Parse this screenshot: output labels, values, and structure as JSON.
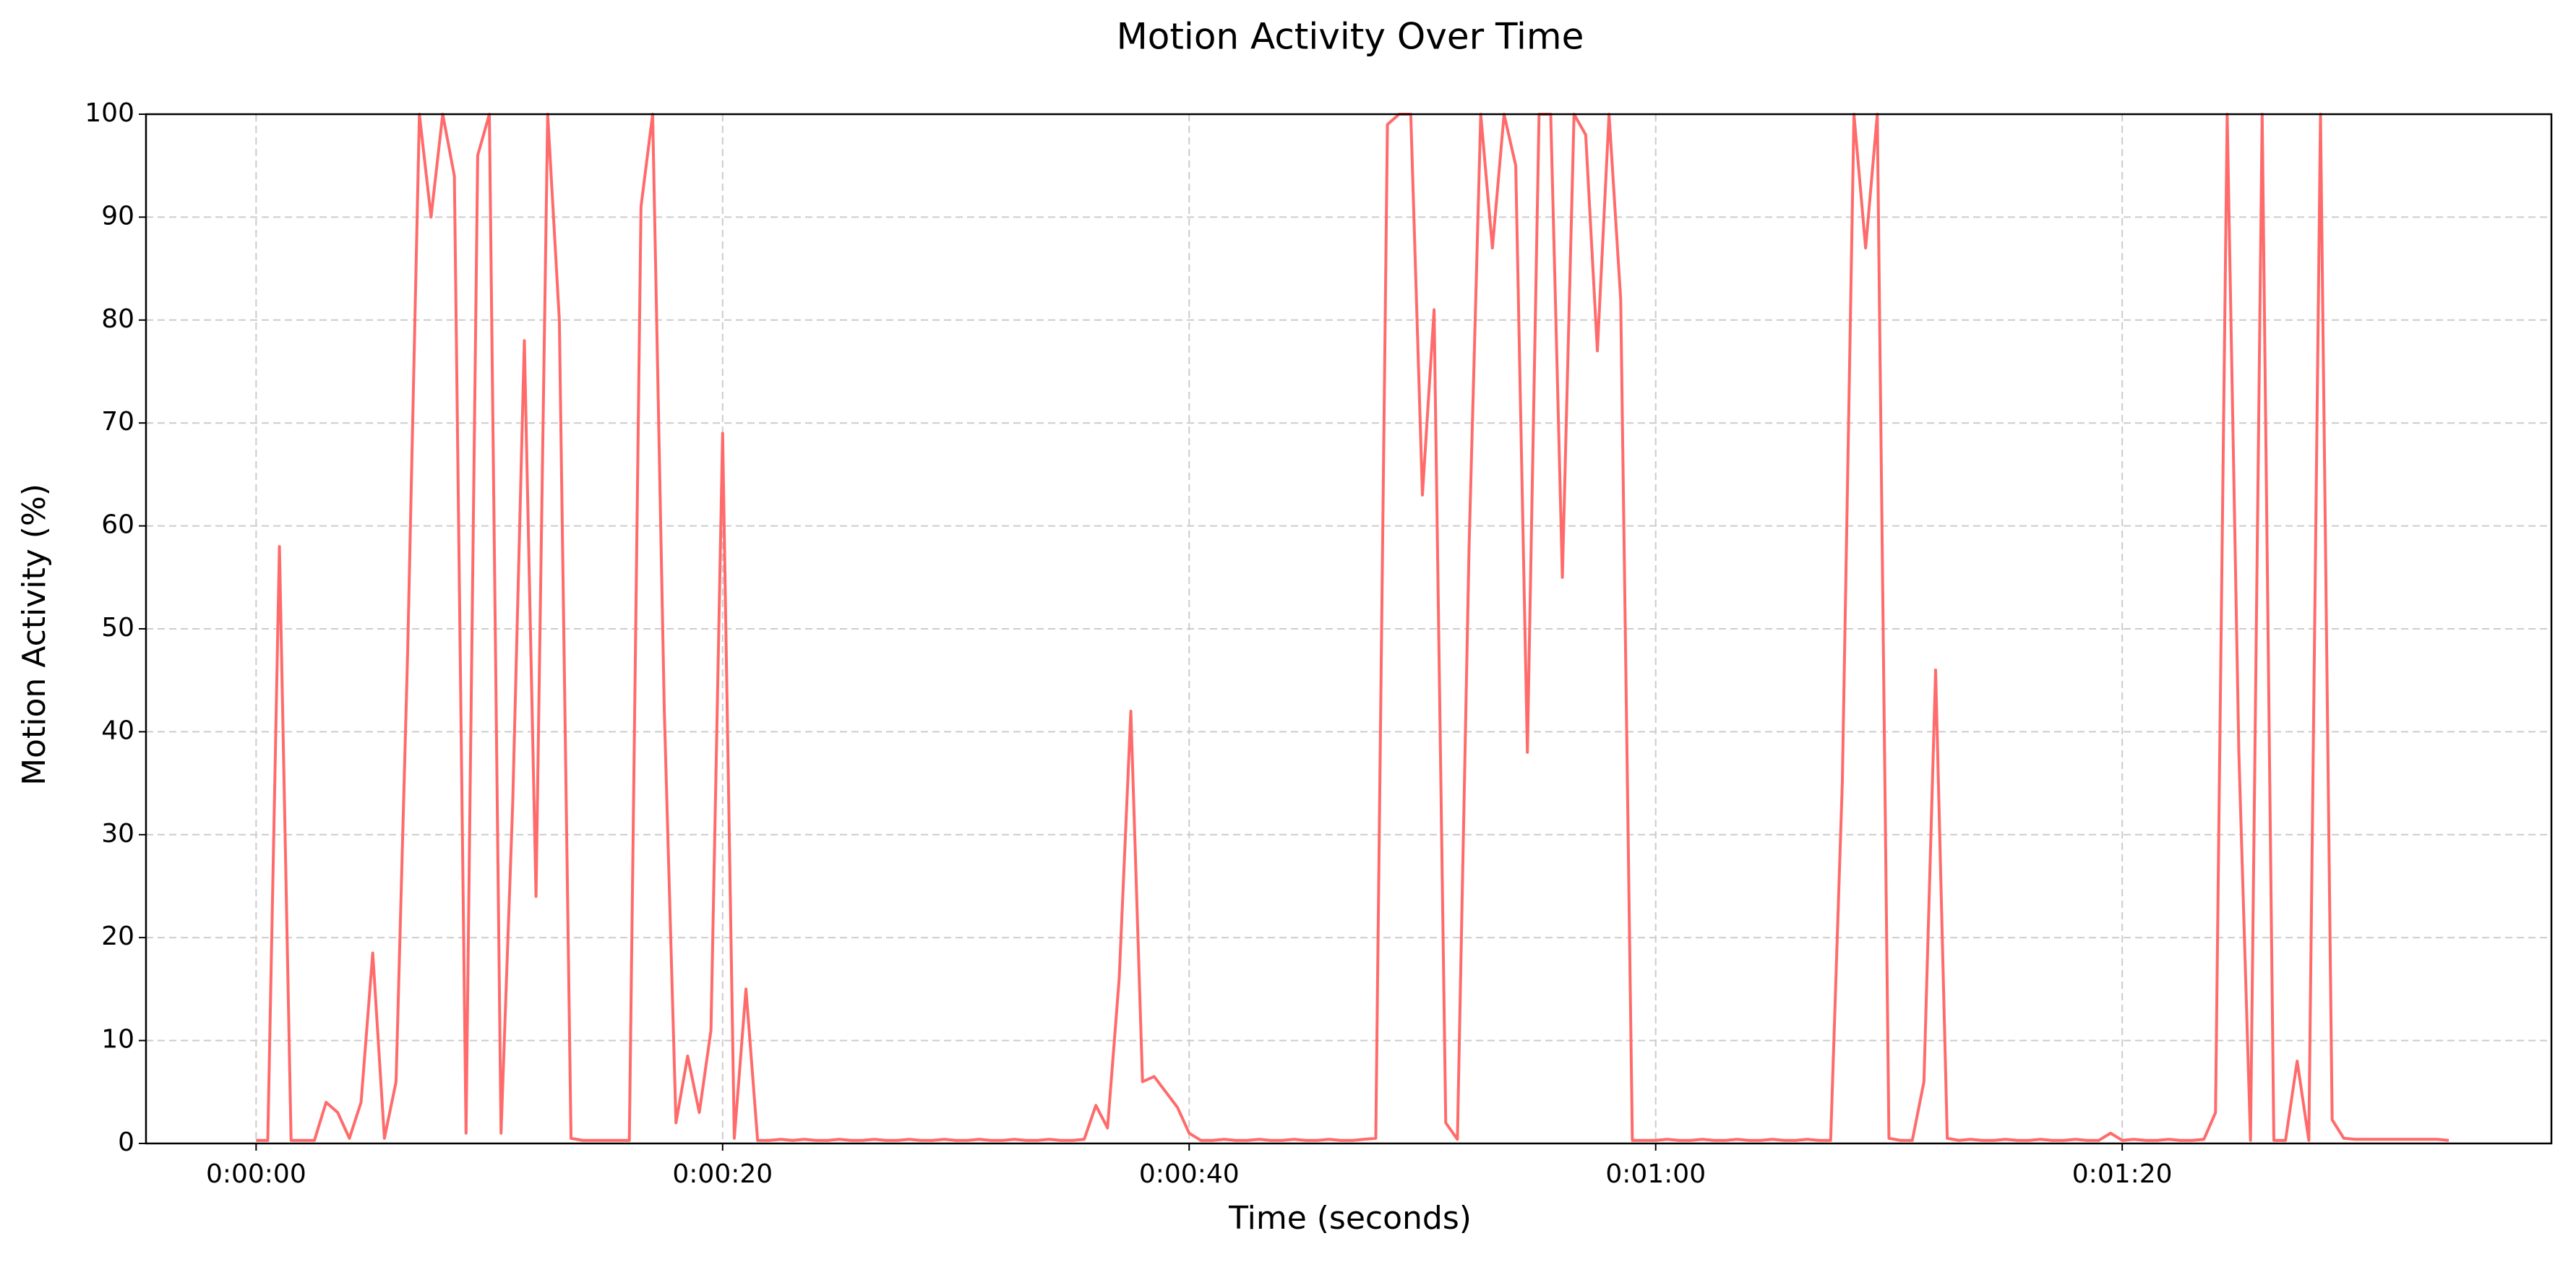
{
  "chart_data": {
    "type": "line",
    "title": "Motion Activity Over Time",
    "x_label": "Time (seconds)",
    "y_label": "Motion Activity (%)",
    "color": "#ff6b6b",
    "grid": true,
    "xlim": [
      -4.72,
      98.4
    ],
    "ylim": [
      0,
      100
    ],
    "xticks": [
      {
        "value": 0,
        "label": "0:00:00"
      },
      {
        "value": 20,
        "label": "0:00:20"
      },
      {
        "value": 40,
        "label": "0:00:40"
      },
      {
        "value": 60,
        "label": "0:01:00"
      },
      {
        "value": 80,
        "label": "0:01:20"
      }
    ],
    "yticks": [
      0,
      10,
      20,
      30,
      40,
      50,
      60,
      70,
      80,
      90,
      100
    ],
    "x": [
      0,
      0.5,
      1,
      1.5,
      2,
      2.5,
      3,
      3.5,
      4,
      4.5,
      5,
      5.5,
      6,
      6.5,
      7,
      7.5,
      8,
      8.5,
      9,
      9.5,
      10,
      10.5,
      11,
      11.5,
      12,
      12.5,
      13,
      13.5,
      14,
      14.5,
      15,
      15.5,
      16,
      16.5,
      17,
      17.5,
      18,
      18.5,
      19,
      19.5,
      20,
      20.5,
      21,
      21.5,
      22,
      22.5,
      23,
      23.5,
      24,
      24.5,
      25,
      25.5,
      26,
      26.5,
      27,
      27.5,
      28,
      28.5,
      29,
      29.5,
      30,
      30.5,
      31,
      31.5,
      32,
      32.5,
      33,
      33.5,
      34,
      34.5,
      35,
      35.5,
      36,
      36.5,
      37,
      37.5,
      38,
      38.5,
      39,
      39.5,
      40,
      40.5,
      41,
      41.5,
      42,
      42.5,
      43,
      43.5,
      44,
      44.5,
      45,
      45.5,
      46,
      46.5,
      47,
      47.5,
      48,
      48.5,
      49,
      49.5,
      50,
      50.5,
      51,
      51.5,
      52,
      52.5,
      53,
      53.5,
      54,
      54.5,
      55,
      55.5,
      56,
      56.5,
      57,
      57.5,
      58,
      58.5,
      59,
      59.5,
      60,
      60.5,
      61,
      61.5,
      62,
      62.5,
      63,
      63.5,
      64,
      64.5,
      65,
      65.5,
      66,
      66.5,
      67,
      67.5,
      68,
      68.5,
      69,
      69.5,
      70,
      70.5,
      71,
      71.5,
      72,
      72.5,
      73,
      73.5,
      74,
      74.5,
      75,
      75.5,
      76,
      76.5,
      77,
      77.5,
      78,
      78.5,
      79,
      79.5,
      80,
      80.5,
      81,
      81.5,
      82,
      82.5,
      83,
      83.5,
      84,
      84.5,
      85,
      85.5,
      86,
      86.5,
      87,
      87.5,
      88,
      88.5,
      89,
      89.5,
      90,
      90.5,
      91,
      91.5,
      92,
      92.5,
      93,
      93.5,
      94
    ],
    "values": [
      0.3,
      0.3,
      58,
      0.3,
      0.3,
      0.3,
      4,
      3,
      0.5,
      4,
      18.5,
      0.5,
      6,
      48,
      100,
      90,
      100,
      94,
      1,
      96,
      100,
      1,
      33,
      78,
      24,
      100,
      80,
      0.5,
      0.3,
      0.3,
      0.3,
      0.3,
      0.3,
      91,
      100,
      42,
      2,
      8.5,
      3,
      11,
      69,
      0.5,
      15,
      0.3,
      0.3,
      0.4,
      0.3,
      0.4,
      0.3,
      0.3,
      0.4,
      0.3,
      0.3,
      0.4,
      0.3,
      0.3,
      0.4,
      0.3,
      0.3,
      0.4,
      0.3,
      0.3,
      0.4,
      0.3,
      0.3,
      0.4,
      0.3,
      0.3,
      0.4,
      0.3,
      0.3,
      0.4,
      3.7,
      1.5,
      16,
      42,
      6,
      6.5,
      5,
      3.5,
      1,
      0.3,
      0.3,
      0.4,
      0.3,
      0.3,
      0.4,
      0.3,
      0.3,
      0.4,
      0.3,
      0.3,
      0.4,
      0.3,
      0.3,
      0.4,
      0.5,
      99,
      100,
      100,
      63,
      81,
      2,
      0.4,
      58,
      100,
      87,
      100,
      95,
      38,
      100,
      100,
      55,
      100,
      98,
      77,
      100,
      82,
      0.3,
      0.3,
      0.3,
      0.4,
      0.3,
      0.3,
      0.4,
      0.3,
      0.3,
      0.4,
      0.3,
      0.3,
      0.4,
      0.3,
      0.3,
      0.4,
      0.3,
      0.3,
      35,
      100,
      87,
      100,
      0.5,
      0.3,
      0.3,
      6,
      46,
      0.5,
      0.3,
      0.4,
      0.3,
      0.3,
      0.4,
      0.3,
      0.3,
      0.4,
      0.3,
      0.3,
      0.4,
      0.3,
      0.3,
      1,
      0.3,
      0.4,
      0.3,
      0.3,
      0.4,
      0.3,
      0.3,
      0.4,
      3,
      100,
      38,
      0.3,
      100,
      0.3,
      0.3,
      8,
      0.3,
      100,
      2.3,
      0.5,
      0.4,
      0.4,
      0.4,
      0.4,
      0.4,
      0.4,
      0.4,
      0.4,
      0.3
    ]
  }
}
